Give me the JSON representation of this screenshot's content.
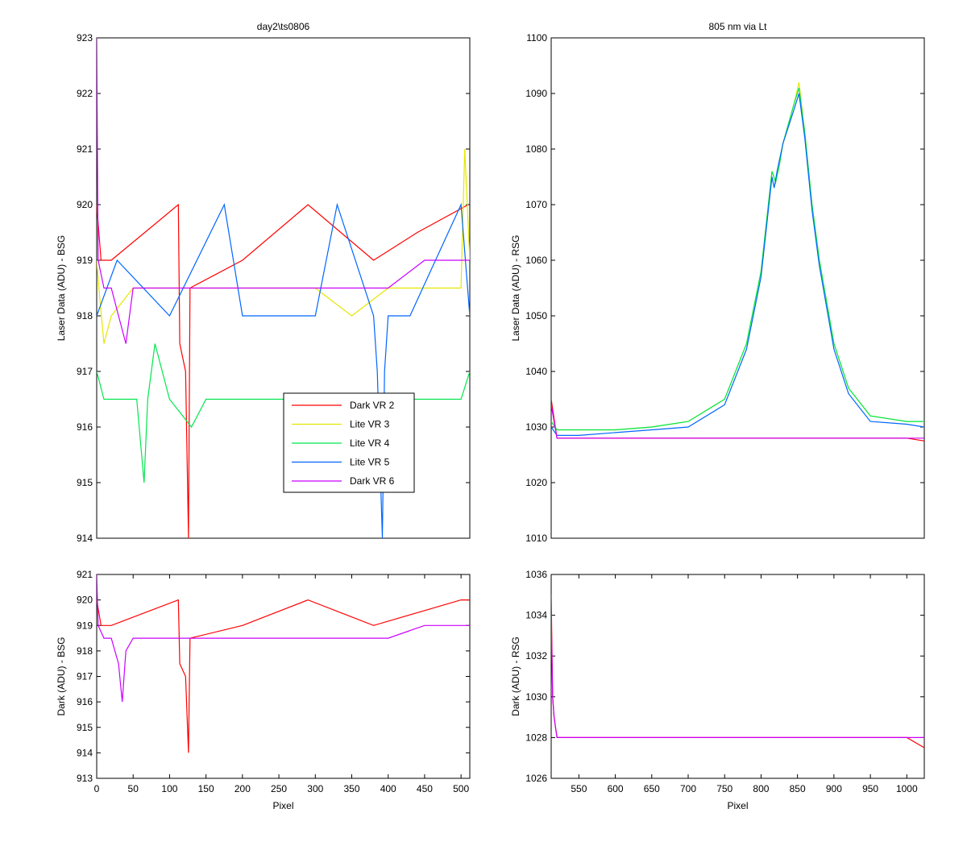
{
  "colors": {
    "Dark VR 2": "#ff0000",
    "Lite VR 3": "#e6e600",
    "Lite VR 4": "#00e64d",
    "Lite VR 5": "#0066ff",
    "Dark VR 6": "#cc00ff"
  },
  "chart_data": [
    {
      "type": "line",
      "title": "day2\\ts0806",
      "xlabel": "",
      "ylabel": "Laser Data (ADU) - BSG",
      "xlim": [
        0,
        512
      ],
      "ylim": [
        914,
        923
      ],
      "xticks": [],
      "yticks": [
        914,
        915,
        916,
        917,
        918,
        919,
        920,
        921,
        922,
        923
      ],
      "grid": false,
      "legend": "center-bottom",
      "series": [
        {
          "name": "Dark VR 2",
          "x": [
            0,
            3,
            6,
            20,
            112,
            114,
            122,
            126,
            128,
            200,
            290,
            380,
            440,
            510
          ],
          "y": [
            920,
            919.5,
            919,
            919,
            920,
            917.5,
            917,
            914,
            918.5,
            919,
            920,
            919,
            919.5,
            920
          ]
        },
        {
          "name": "Lite VR 3",
          "x": [
            0,
            3,
            10,
            20,
            50,
            100,
            150,
            200,
            250,
            300,
            350,
            400,
            450,
            500,
            505,
            512
          ],
          "y": [
            919,
            918.5,
            917.5,
            918,
            918.5,
            918.5,
            918.5,
            918.5,
            918.5,
            918.5,
            918,
            918.5,
            918.5,
            918.5,
            921,
            919
          ]
        },
        {
          "name": "Lite VR 4",
          "x": [
            0,
            10,
            20,
            40,
            55,
            65,
            70,
            80,
            100,
            130,
            150,
            200,
            250,
            300,
            350,
            400,
            450,
            500,
            512
          ],
          "y": [
            917,
            916.5,
            916.5,
            916.5,
            916.5,
            915,
            916.5,
            917.5,
            916.5,
            916,
            916.5,
            916.5,
            916.5,
            916.5,
            916.5,
            916.5,
            916.5,
            916.5,
            917
          ]
        },
        {
          "name": "Lite VR 5",
          "x": [
            0,
            28,
            100,
            175,
            200,
            250,
            300,
            330,
            380,
            385,
            392,
            395,
            400,
            430,
            500,
            512
          ],
          "y": [
            918,
            919,
            918,
            920,
            918,
            918,
            918,
            920,
            918,
            917,
            914,
            917,
            918,
            918,
            920,
            918
          ]
        },
        {
          "name": "Dark VR 6",
          "x": [
            0,
            2,
            10,
            20,
            30,
            40,
            50,
            100,
            150,
            200,
            250,
            300,
            350,
            400,
            450,
            512
          ],
          "y": [
            923,
            919,
            918.5,
            918.5,
            918,
            917.5,
            918.5,
            918.5,
            918.5,
            918.5,
            918.5,
            918.5,
            918.5,
            918.5,
            919,
            919
          ]
        }
      ]
    },
    {
      "type": "line",
      "title": "805 nm via Lt",
      "xlabel": "",
      "ylabel": "Laser Data (ADU) - RSG",
      "xlim": [
        512,
        1024
      ],
      "ylim": [
        1010,
        1100
      ],
      "xticks": [],
      "yticks": [
        1010,
        1020,
        1030,
        1040,
        1050,
        1060,
        1070,
        1080,
        1090,
        1100
      ],
      "grid": false,
      "series": [
        {
          "name": "Dark VR 2",
          "x": [
            512,
            520,
            550,
            600,
            650,
            700,
            750,
            800,
            850,
            900,
            950,
            1000,
            1024
          ],
          "y": [
            1035,
            1028,
            1028,
            1028,
            1028,
            1028,
            1028,
            1028,
            1028,
            1028,
            1028,
            1028,
            1027.5
          ]
        },
        {
          "name": "Lite VR 3",
          "x": [
            512,
            520,
            550,
            600,
            650,
            700,
            750,
            780,
            800,
            815,
            820,
            825,
            830,
            845,
            852,
            860,
            870,
            880,
            900,
            920,
            950,
            1000,
            1024
          ],
          "y": [
            1031,
            1029.5,
            1029.5,
            1029.5,
            1030,
            1031,
            1035,
            1045,
            1058,
            1076,
            1074,
            1077,
            1081,
            1088,
            1092,
            1083,
            1070,
            1060,
            1045,
            1037,
            1032,
            1031,
            1031
          ]
        },
        {
          "name": "Lite VR 4",
          "x": [
            512,
            520,
            550,
            600,
            650,
            700,
            750,
            780,
            800,
            815,
            820,
            825,
            830,
            845,
            852,
            860,
            870,
            880,
            900,
            920,
            950,
            1000,
            1024
          ],
          "y": [
            1031,
            1029.5,
            1029.5,
            1029.5,
            1030,
            1031,
            1035,
            1045,
            1058,
            1076,
            1074,
            1077,
            1081,
            1088,
            1091,
            1083,
            1070,
            1060,
            1045,
            1037,
            1032,
            1031,
            1031
          ]
        },
        {
          "name": "Lite VR 5",
          "x": [
            512,
            520,
            550,
            600,
            650,
            700,
            750,
            780,
            800,
            815,
            818,
            822,
            830,
            845,
            852,
            860,
            870,
            880,
            900,
            920,
            950,
            1000,
            1024
          ],
          "y": [
            1030,
            1028.5,
            1028.5,
            1029,
            1029.5,
            1030,
            1034,
            1044,
            1057,
            1075,
            1073,
            1076,
            1081,
            1087,
            1090,
            1082,
            1069,
            1059,
            1044,
            1036,
            1031,
            1030.5,
            1030
          ]
        },
        {
          "name": "Dark VR 6",
          "x": [
            512,
            520,
            550,
            600,
            650,
            700,
            750,
            800,
            850,
            900,
            950,
            1000,
            1024
          ],
          "y": [
            1034,
            1028,
            1028,
            1028,
            1028,
            1028,
            1028,
            1028,
            1028,
            1028,
            1028,
            1028,
            1028
          ]
        }
      ]
    },
    {
      "type": "line",
      "title": "",
      "xlabel": "Pixel",
      "ylabel": "Dark (ADU) - BSG",
      "xlim": [
        0,
        512
      ],
      "ylim": [
        913,
        921
      ],
      "xticks": [
        0,
        50,
        100,
        150,
        200,
        250,
        300,
        350,
        400,
        450,
        500
      ],
      "yticks": [
        913,
        914,
        915,
        916,
        917,
        918,
        919,
        920,
        921
      ],
      "grid": false,
      "series": [
        {
          "name": "Dark VR 2",
          "x": [
            0,
            3,
            6,
            20,
            112,
            114,
            122,
            126,
            128,
            200,
            290,
            380,
            440,
            500,
            512
          ],
          "y": [
            920,
            919.5,
            919,
            919,
            920,
            917.5,
            917,
            914,
            918.5,
            919,
            920,
            919,
            919.5,
            920,
            920
          ]
        },
        {
          "name": "Dark VR 6",
          "x": [
            0,
            2,
            10,
            20,
            30,
            35,
            40,
            50,
            100,
            150,
            200,
            250,
            300,
            350,
            400,
            450,
            512
          ],
          "y": [
            921,
            919,
            918.5,
            918.5,
            917.5,
            916,
            918,
            918.5,
            918.5,
            918.5,
            918.5,
            918.5,
            918.5,
            918.5,
            918.5,
            919,
            919
          ]
        }
      ]
    },
    {
      "type": "line",
      "title": "",
      "xlabel": "Pixel",
      "ylabel": "Dark (ADU) - RSG",
      "xlim": [
        512,
        1024
      ],
      "ylim": [
        1026,
        1036
      ],
      "xticks": [
        550,
        600,
        650,
        700,
        750,
        800,
        850,
        900,
        950,
        1000
      ],
      "yticks": [
        1026,
        1028,
        1030,
        1032,
        1034,
        1036
      ],
      "grid": false,
      "series": [
        {
          "name": "Dark VR 2",
          "x": [
            512,
            514,
            516,
            520,
            550,
            600,
            650,
            700,
            750,
            800,
            850,
            900,
            950,
            1000,
            1024
          ],
          "y": [
            1035,
            1030,
            1029,
            1028,
            1028,
            1028,
            1028,
            1028,
            1028,
            1028,
            1028,
            1028,
            1028,
            1028,
            1027.5
          ]
        },
        {
          "name": "Dark VR 6",
          "x": [
            512,
            514,
            516,
            520,
            550,
            600,
            650,
            700,
            750,
            800,
            850,
            900,
            950,
            1000,
            1024
          ],
          "y": [
            1034,
            1030,
            1029,
            1028,
            1028,
            1028,
            1028,
            1028,
            1028,
            1028,
            1028,
            1028,
            1028,
            1028,
            1028
          ]
        }
      ]
    }
  ]
}
